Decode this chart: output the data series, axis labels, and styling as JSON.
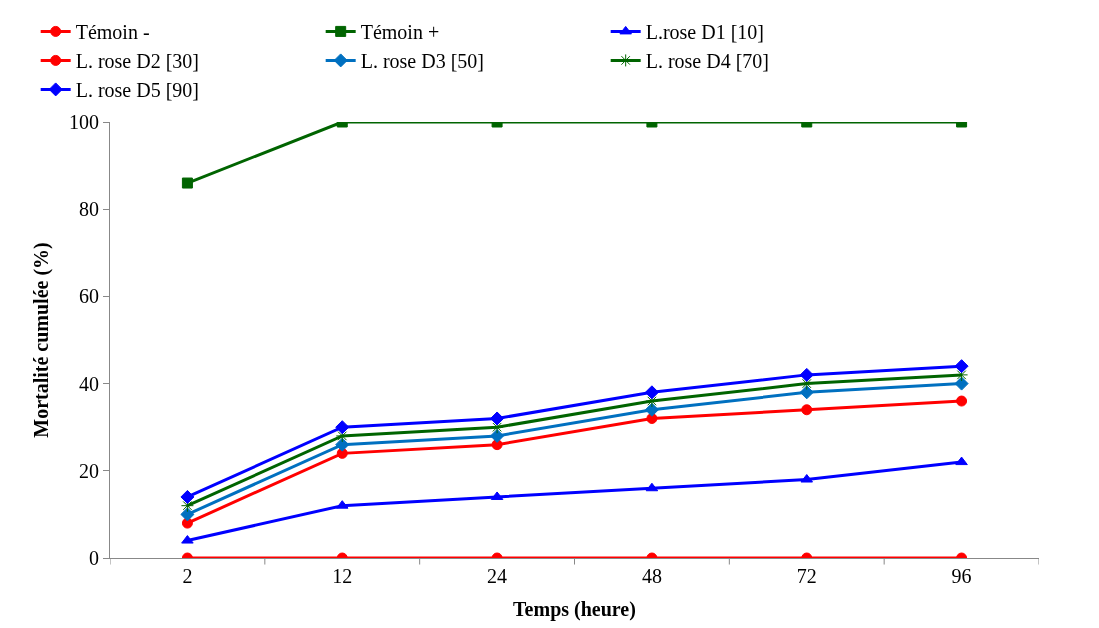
{
  "chart_data": {
    "type": "line",
    "xlabel": "Temps (heure)",
    "ylabel": "Mortalité cumulée (%)",
    "categories": [
      "2",
      "12",
      "24",
      "48",
      "72",
      "96"
    ],
    "ylim": [
      0,
      100
    ],
    "yticks": [
      0,
      20,
      40,
      60,
      80,
      100
    ],
    "legend": "top",
    "line_style": "solid",
    "series": [
      {
        "name": "Témoin -",
        "color": "#ff0000",
        "marker": "circle",
        "values": [
          0,
          0,
          0,
          0,
          0,
          0
        ]
      },
      {
        "name": "Témoin +",
        "color": "#006400",
        "marker": "square",
        "values": [
          86,
          100,
          100,
          100,
          100,
          100
        ]
      },
      {
        "name": "L.rose D1 [10]",
        "color": "#0000ff",
        "marker": "triangle",
        "values": [
          4,
          12,
          14,
          16,
          18,
          22
        ]
      },
      {
        "name": "L. rose D2 [30]",
        "color": "#ff0000",
        "marker": "circle",
        "values": [
          8,
          24,
          26,
          32,
          34,
          36
        ]
      },
      {
        "name": "L. rose D3 [50]",
        "color": "#0070c0",
        "marker": "diamond",
        "values": [
          10,
          26,
          28,
          34,
          38,
          40
        ]
      },
      {
        "name": "L. rose D4 [70]",
        "color": "#006400",
        "marker": "cross",
        "values": [
          12,
          28,
          30,
          36,
          40,
          42
        ]
      },
      {
        "name": "L. rose D5 [90]",
        "color": "#0000ff",
        "marker": "diamond",
        "values": [
          14,
          30,
          32,
          38,
          42,
          44
        ]
      }
    ]
  }
}
